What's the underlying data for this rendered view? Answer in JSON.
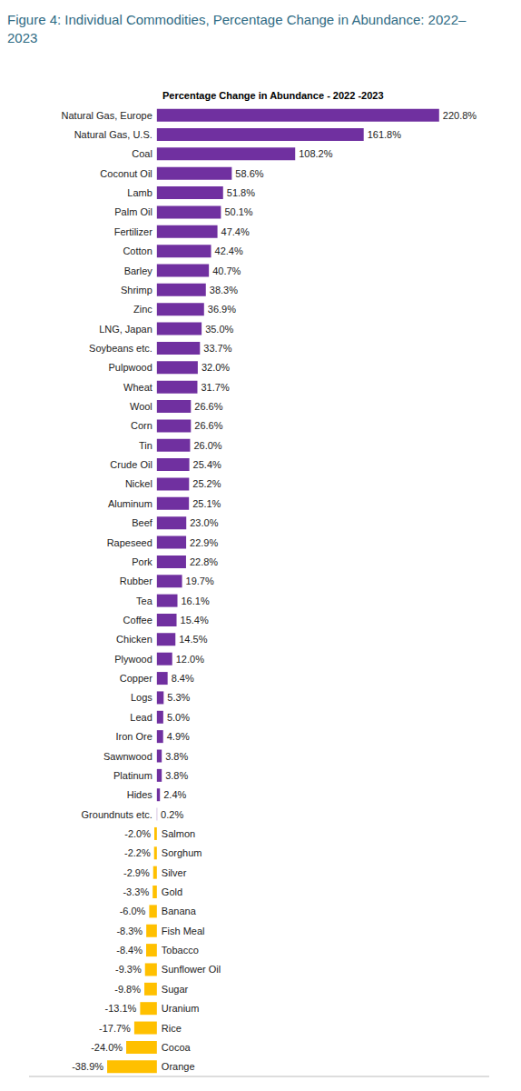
{
  "chart_data": {
    "type": "bar",
    "orientation": "horizontal",
    "title": "Figure 4: Individual Commodities, Percentage Change in Abundance: 2022–2023",
    "subtitle": "Percentage Change in Abundance - 2022 -2023",
    "categories": [
      "Natural Gas, Europe",
      "Natural Gas, U.S.",
      "Coal",
      "Coconut Oil",
      "Lamb",
      "Palm Oil",
      "Fertilizer",
      "Cotton",
      "Barley",
      "Shrimp",
      "Zinc",
      "LNG, Japan",
      "Soybeans etc.",
      "Pulpwood",
      "Wheat",
      "Wool",
      "Corn",
      "Tin",
      "Crude Oil",
      "Nickel",
      "Aluminum",
      "Beef",
      "Rapeseed",
      "Pork",
      "Rubber",
      "Tea",
      "Coffee",
      "Chicken",
      "Plywood",
      "Copper",
      "Logs",
      "Lead",
      "Iron Ore",
      "Sawnwood",
      "Platinum",
      "Hides",
      "Groundnuts etc.",
      "Salmon",
      "Sorghum",
      "Silver",
      "Gold",
      "Banana",
      "Fish Meal",
      "Tobacco",
      "Sunflower Oil",
      "Sugar",
      "Uranium",
      "Rice",
      "Cocoa",
      "Orange"
    ],
    "values": [
      220.8,
      161.8,
      108.2,
      58.6,
      51.8,
      50.1,
      47.4,
      42.4,
      40.7,
      38.3,
      36.9,
      35.0,
      33.7,
      32.0,
      31.7,
      26.6,
      26.6,
      26.0,
      25.4,
      25.2,
      25.1,
      23.0,
      22.9,
      22.8,
      19.7,
      16.1,
      15.4,
      14.5,
      12.0,
      8.4,
      5.3,
      5.0,
      4.9,
      3.8,
      3.8,
      2.4,
      0.2,
      -2.0,
      -2.2,
      -2.9,
      -3.3,
      -6.0,
      -8.3,
      -8.4,
      -9.3,
      -9.8,
      -13.1,
      -17.7,
      -24.0,
      -38.9
    ],
    "value_labels": [
      "220.8%",
      "161.8%",
      "108.2%",
      "58.6%",
      "51.8%",
      "50.1%",
      "47.4%",
      "42.4%",
      "40.7%",
      "38.3%",
      "36.9%",
      "35.0%",
      "33.7%",
      "32.0%",
      "31.7%",
      "26.6%",
      "26.6%",
      "26.0%",
      "25.4%",
      "25.2%",
      "25.1%",
      "23.0%",
      "22.9%",
      "22.8%",
      "19.7%",
      "16.1%",
      "15.4%",
      "14.5%",
      "12.0%",
      "8.4%",
      "5.3%",
      "5.0%",
      "4.9%",
      "3.8%",
      "3.8%",
      "2.4%",
      "0.2%",
      "-2.0%",
      "-2.2%",
      "-2.9%",
      "-3.3%",
      "-6.0%",
      "-8.3%",
      "-8.4%",
      "-9.3%",
      "-9.8%",
      "-13.1%",
      "-17.7%",
      "-24.0%",
      "-38.9%"
    ],
    "colors": [
      "#7030a0",
      "#7030a0",
      "#7030a0",
      "#7030a0",
      "#7030a0",
      "#7030a0",
      "#7030a0",
      "#7030a0",
      "#7030a0",
      "#7030a0",
      "#7030a0",
      "#7030a0",
      "#7030a0",
      "#7030a0",
      "#7030a0",
      "#7030a0",
      "#7030a0",
      "#7030a0",
      "#7030a0",
      "#7030a0",
      "#7030a0",
      "#7030a0",
      "#7030a0",
      "#7030a0",
      "#7030a0",
      "#7030a0",
      "#7030a0",
      "#7030a0",
      "#7030a0",
      "#7030a0",
      "#7030a0",
      "#7030a0",
      "#7030a0",
      "#7030a0",
      "#7030a0",
      "#7030a0",
      "#7030a0",
      "#ffc000",
      "#ffc000",
      "#ffc000",
      "#ffc000",
      "#ffc000",
      "#ffc000",
      "#ffc000",
      "#ffc000",
      "#ffc000",
      "#ffc000",
      "#ffc000",
      "#ffc000",
      "#ffc000"
    ],
    "xlim": [
      -100,
      260
    ],
    "tick_labels": false,
    "data_labels": true,
    "grid": false
  }
}
